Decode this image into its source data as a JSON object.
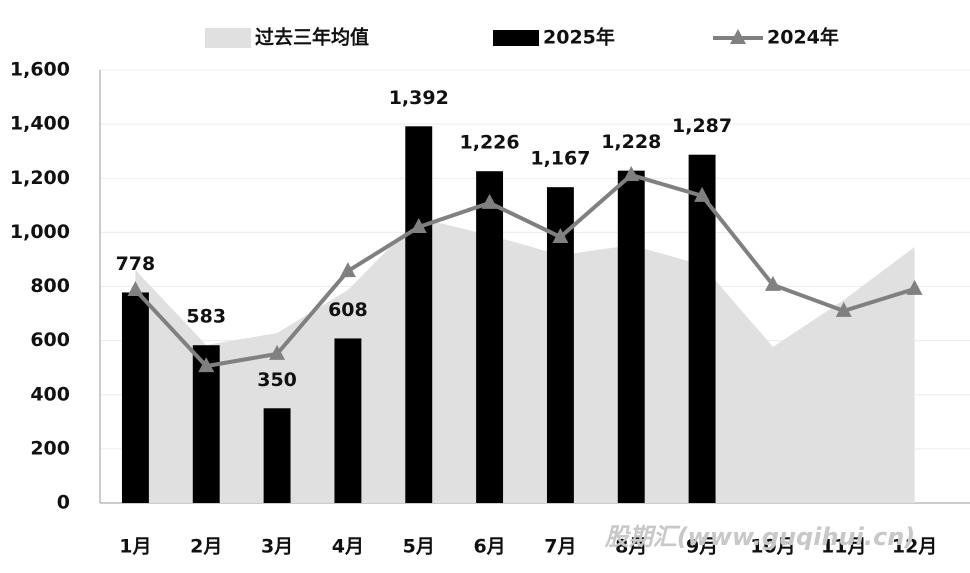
{
  "chart_data": {
    "type": "combo",
    "categories": [
      "1月",
      "2月",
      "3月",
      "4月",
      "5月",
      "6月",
      "7月",
      "8月",
      "9月",
      "10月",
      "11月",
      "12月"
    ],
    "series": [
      {
        "name": "过去三年均值",
        "type": "area",
        "color": "#e0e0e0",
        "values": [
          861,
          584,
          628,
          787,
          1053,
          990,
          916,
          953,
          880,
          577,
          750,
          946
        ]
      },
      {
        "name": "2025年",
        "type": "bar",
        "color": "#000000",
        "values": [
          778,
          583,
          350,
          608,
          1392,
          1226,
          1167,
          1228,
          1287,
          null,
          null,
          null
        ],
        "value_labels": [
          "778",
          "583",
          "350",
          "608",
          "1,392",
          "1,226",
          "1,167",
          "1,228",
          "1,287",
          null,
          null,
          null
        ]
      },
      {
        "name": "2024年",
        "type": "line",
        "color": "#808080",
        "values": [
          787,
          506,
          551,
          857,
          1020,
          1109,
          983,
          1212,
          1135,
          806,
          710,
          791
        ]
      }
    ],
    "ylim": [
      0,
      1600
    ],
    "yticks": [
      0,
      200,
      400,
      600,
      800,
      {
        "value": 1000,
        "label": "1,000"
      },
      {
        "value": 1200,
        "label": "1,200"
      },
      {
        "value": 1400,
        "label": "1,400"
      },
      {
        "value": 1600,
        "label": "1,600"
      }
    ],
    "grid": true,
    "watermark": "股期汇(www.guqihui.cn)"
  }
}
